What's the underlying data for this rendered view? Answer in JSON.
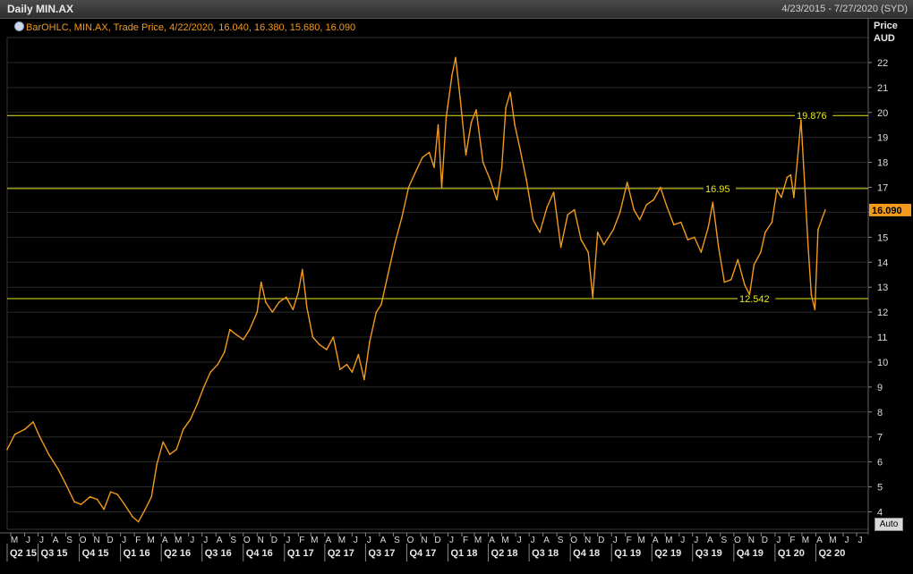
{
  "header": {
    "title": "Daily MIN.AX",
    "date_range": "4/23/2015 - 7/27/2020 (SYD)"
  },
  "legend": {
    "text": "BarOHLC, MIN.AX, Trade Price, 4/22/2020, 16.040, 16.380, 15.680, 16.090"
  },
  "axis": {
    "price_label_1": "Price",
    "price_label_2": "AUD",
    "auto_label": "Auto"
  },
  "colors": {
    "background": "#000000",
    "series": "#f39a1c",
    "level_lines": "#e6e61e",
    "last_price_bg": "#f39a1c",
    "grid": "#2a2a2a"
  },
  "chart_data": {
    "type": "line",
    "title": "Daily MIN.AX",
    "series_style": "BarOHLC",
    "ylabel": "Price AUD",
    "ylim": [
      3.3,
      23.0
    ],
    "yticks": [
      4,
      5,
      6,
      7,
      8,
      9,
      10,
      11,
      12,
      13,
      14,
      15,
      16,
      17,
      18,
      19,
      20,
      21,
      22
    ],
    "xlim": [
      "2015-04-23",
      "2020-07-27"
    ],
    "month_ticks": [
      "M",
      "J",
      "J",
      "A",
      "S",
      "O",
      "N",
      "D",
      "J",
      "F",
      "M",
      "A",
      "M",
      "J",
      "J",
      "A",
      "S",
      "O",
      "N",
      "D",
      "J",
      "F",
      "M",
      "A",
      "M",
      "J",
      "J",
      "A",
      "S",
      "O",
      "N",
      "D",
      "J",
      "F",
      "M",
      "A",
      "M",
      "J",
      "J",
      "A",
      "S",
      "O",
      "N",
      "D",
      "J",
      "F",
      "M",
      "A",
      "M",
      "J",
      "J",
      "A",
      "S",
      "O",
      "N",
      "D",
      "J",
      "F",
      "M",
      "A",
      "M",
      "J",
      "J"
    ],
    "quarter_ticks": [
      "Q2 15",
      "Q3 15",
      "Q4 15",
      "Q1 16",
      "Q2 16",
      "Q3 16",
      "Q4 16",
      "Q1 17",
      "Q2 17",
      "Q3 17",
      "Q4 17",
      "Q1 18",
      "Q2 18",
      "Q3 18",
      "Q4 18",
      "Q1 19",
      "Q2 19",
      "Q3 19",
      "Q4 19",
      "Q1 20",
      "Q2 20"
    ],
    "last_price": 16.09,
    "last_price_label": "16.090",
    "horizontal_levels": [
      {
        "value": 19.876,
        "label": "19.876"
      },
      {
        "value": 16.95,
        "label": "16.95"
      },
      {
        "value": 12.542,
        "label": "12.542"
      }
    ],
    "series": [
      {
        "name": "MIN.AX Trade Price",
        "points": [
          [
            "2015-04-23",
            6.5
          ],
          [
            "2015-05-10",
            7.1
          ],
          [
            "2015-06-01",
            7.3
          ],
          [
            "2015-06-20",
            7.6
          ],
          [
            "2015-07-05",
            7.0
          ],
          [
            "2015-07-25",
            6.3
          ],
          [
            "2015-08-15",
            5.7
          ],
          [
            "2015-09-01",
            5.1
          ],
          [
            "2015-09-20",
            4.4
          ],
          [
            "2015-10-05",
            4.3
          ],
          [
            "2015-10-25",
            4.6
          ],
          [
            "2015-11-10",
            4.5
          ],
          [
            "2015-11-25",
            4.1
          ],
          [
            "2015-12-10",
            4.8
          ],
          [
            "2015-12-25",
            4.7
          ],
          [
            "2016-01-10",
            4.3
          ],
          [
            "2016-01-28",
            3.8
          ],
          [
            "2016-02-10",
            3.6
          ],
          [
            "2016-02-25",
            4.1
          ],
          [
            "2016-03-10",
            4.6
          ],
          [
            "2016-03-22",
            5.9
          ],
          [
            "2016-04-05",
            6.8
          ],
          [
            "2016-04-20",
            6.3
          ],
          [
            "2016-05-05",
            6.5
          ],
          [
            "2016-05-20",
            7.3
          ],
          [
            "2016-06-05",
            7.7
          ],
          [
            "2016-06-20",
            8.3
          ],
          [
            "2016-07-05",
            9.0
          ],
          [
            "2016-07-20",
            9.6
          ],
          [
            "2016-08-05",
            9.9
          ],
          [
            "2016-08-20",
            10.4
          ],
          [
            "2016-09-01",
            11.3
          ],
          [
            "2016-09-15",
            11.1
          ],
          [
            "2016-10-01",
            10.9
          ],
          [
            "2016-10-15",
            11.3
          ],
          [
            "2016-11-01",
            12.0
          ],
          [
            "2016-11-10",
            13.2
          ],
          [
            "2016-11-20",
            12.4
          ],
          [
            "2016-12-05",
            12.0
          ],
          [
            "2016-12-20",
            12.4
          ],
          [
            "2017-01-05",
            12.6
          ],
          [
            "2017-01-20",
            12.1
          ],
          [
            "2017-02-01",
            12.8
          ],
          [
            "2017-02-10",
            13.7
          ],
          [
            "2017-02-20",
            12.2
          ],
          [
            "2017-03-05",
            11.0
          ],
          [
            "2017-03-20",
            10.7
          ],
          [
            "2017-04-05",
            10.5
          ],
          [
            "2017-04-20",
            11.0
          ],
          [
            "2017-05-05",
            9.7
          ],
          [
            "2017-05-20",
            9.9
          ],
          [
            "2017-06-01",
            9.6
          ],
          [
            "2017-06-15",
            10.3
          ],
          [
            "2017-06-28",
            9.3
          ],
          [
            "2017-07-10",
            10.8
          ],
          [
            "2017-07-25",
            12.0
          ],
          [
            "2017-08-05",
            12.3
          ],
          [
            "2017-08-20",
            13.5
          ],
          [
            "2017-09-05",
            14.8
          ],
          [
            "2017-09-20",
            15.8
          ],
          [
            "2017-10-05",
            17.0
          ],
          [
            "2017-10-20",
            17.6
          ],
          [
            "2017-11-05",
            18.2
          ],
          [
            "2017-11-20",
            18.4
          ],
          [
            "2017-12-01",
            17.8
          ],
          [
            "2017-12-10",
            19.5
          ],
          [
            "2017-12-18",
            17.0
          ],
          [
            "2017-12-28",
            19.8
          ],
          [
            "2018-01-10",
            21.5
          ],
          [
            "2018-01-18",
            22.2
          ],
          [
            "2018-01-28",
            20.6
          ],
          [
            "2018-02-10",
            18.3
          ],
          [
            "2018-02-22",
            19.6
          ],
          [
            "2018-03-05",
            20.1
          ],
          [
            "2018-03-20",
            18.0
          ],
          [
            "2018-04-05",
            17.3
          ],
          [
            "2018-04-20",
            16.5
          ],
          [
            "2018-05-01",
            17.8
          ],
          [
            "2018-05-10",
            20.2
          ],
          [
            "2018-05-20",
            20.8
          ],
          [
            "2018-05-30",
            19.5
          ],
          [
            "2018-06-10",
            18.6
          ],
          [
            "2018-06-25",
            17.3
          ],
          [
            "2018-07-10",
            15.7
          ],
          [
            "2018-07-25",
            15.2
          ],
          [
            "2018-08-10",
            16.2
          ],
          [
            "2018-08-25",
            16.8
          ],
          [
            "2018-09-10",
            14.6
          ],
          [
            "2018-09-25",
            15.9
          ],
          [
            "2018-10-10",
            16.1
          ],
          [
            "2018-10-25",
            14.9
          ],
          [
            "2018-11-10",
            14.4
          ],
          [
            "2018-11-20",
            12.6
          ],
          [
            "2018-12-01",
            15.2
          ],
          [
            "2018-12-15",
            14.7
          ],
          [
            "2019-01-05",
            15.3
          ],
          [
            "2019-01-20",
            16.0
          ],
          [
            "2019-02-05",
            17.2
          ],
          [
            "2019-02-20",
            16.1
          ],
          [
            "2019-03-05",
            15.7
          ],
          [
            "2019-03-20",
            16.3
          ],
          [
            "2019-04-05",
            16.5
          ],
          [
            "2019-04-20",
            17.0
          ],
          [
            "2019-05-05",
            16.2
          ],
          [
            "2019-05-20",
            15.5
          ],
          [
            "2019-06-05",
            15.6
          ],
          [
            "2019-06-20",
            14.9
          ],
          [
            "2019-07-05",
            15.0
          ],
          [
            "2019-07-20",
            14.4
          ],
          [
            "2019-08-05",
            15.4
          ],
          [
            "2019-08-15",
            16.4
          ],
          [
            "2019-08-28",
            14.6
          ],
          [
            "2019-09-10",
            13.2
          ],
          [
            "2019-09-25",
            13.3
          ],
          [
            "2019-10-10",
            14.1
          ],
          [
            "2019-10-25",
            13.1
          ],
          [
            "2019-11-05",
            12.7
          ],
          [
            "2019-11-15",
            13.9
          ],
          [
            "2019-11-30",
            14.4
          ],
          [
            "2019-12-10",
            15.2
          ],
          [
            "2019-12-25",
            15.6
          ],
          [
            "2020-01-05",
            16.9
          ],
          [
            "2020-01-15",
            16.6
          ],
          [
            "2020-01-28",
            17.4
          ],
          [
            "2020-02-05",
            17.5
          ],
          [
            "2020-02-12",
            16.6
          ],
          [
            "2020-02-20",
            18.1
          ],
          [
            "2020-02-28",
            19.7
          ],
          [
            "2020-03-05",
            17.8
          ],
          [
            "2020-03-15",
            14.6
          ],
          [
            "2020-03-22",
            12.7
          ],
          [
            "2020-03-30",
            12.1
          ],
          [
            "2020-04-06",
            15.3
          ],
          [
            "2020-04-14",
            15.7
          ],
          [
            "2020-04-22",
            16.09
          ]
        ]
      }
    ]
  }
}
